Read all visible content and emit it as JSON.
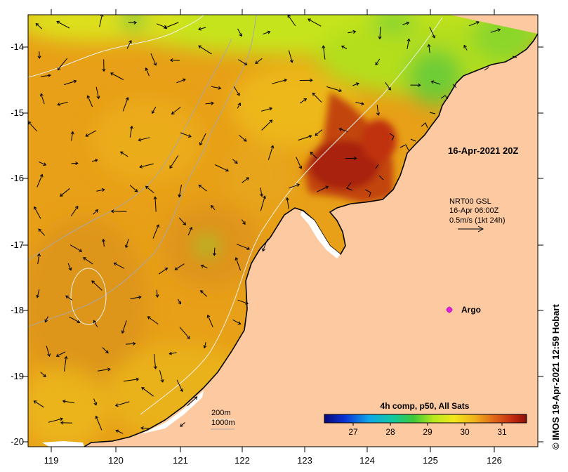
{
  "map": {
    "lon_ticks": [
      "119",
      "120",
      "121",
      "122",
      "123",
      "124",
      "125",
      "126"
    ],
    "lat_ticks": [
      "-14",
      "-15",
      "-16",
      "-17",
      "-18",
      "-19",
      "-20"
    ]
  },
  "annotations": {
    "timestamp": "16-Apr-2021 20Z",
    "current_source": "NRT00 GSL",
    "current_time": "16-Apr 06:00Z",
    "current_scale": "0.5m/s (1kt 24h)",
    "argo_label": "Argo",
    "depth_200": "200m",
    "depth_1000": "1000m"
  },
  "colorbar": {
    "title": "4h comp, p50, All Sats",
    "ticks": [
      "27",
      "28",
      "29",
      "30",
      "31"
    ]
  },
  "credit": "© IMOS 19-Apr-2021 12:59 Hobart",
  "colors": {
    "land": "#fdc9a0",
    "warm_sst": "#e8a218",
    "hot_sst": "#a51f07",
    "cool_sst": "#a6e21c",
    "argo_marker": "#e020e0"
  }
}
